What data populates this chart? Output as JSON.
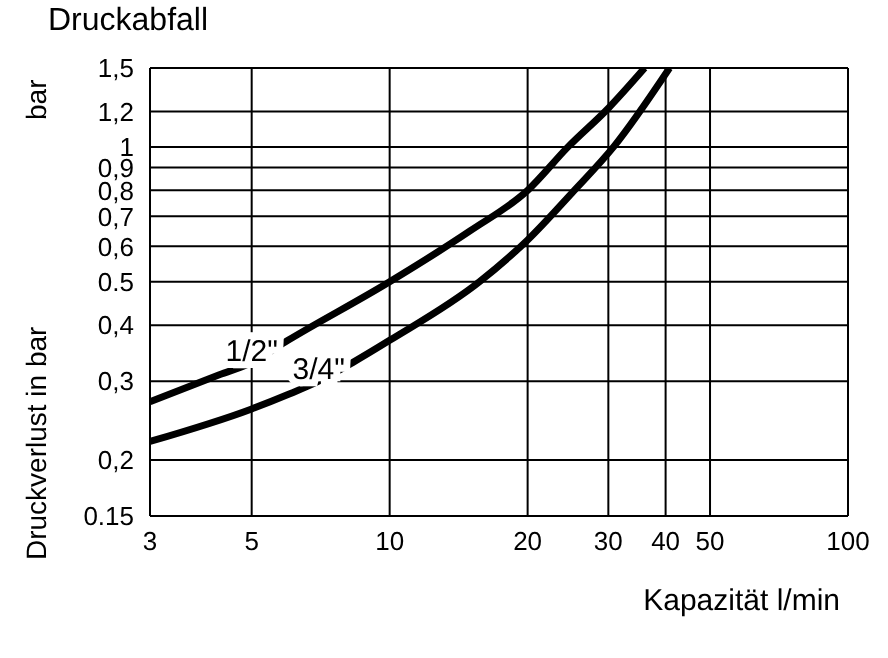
{
  "chart_data": {
    "type": "line",
    "title": "Druckabfall",
    "xlabel": "Kapazität l/min",
    "ylabel": "Druckverlust in bar",
    "annotations": [
      "bar"
    ],
    "log": "xy",
    "grid": true,
    "legend": false,
    "marker": "none",
    "line_style": "solid",
    "xlim": [
      3,
      100
    ],
    "xticks": [
      3,
      5,
      10,
      20,
      30,
      40,
      50,
      100
    ],
    "ylim": [
      0.15,
      1.5
    ],
    "yticks": [
      {
        "value": 0.15,
        "label": "0.15"
      },
      {
        "value": 0.2,
        "label": "0,2"
      },
      {
        "value": 0.3,
        "label": "0,3"
      },
      {
        "value": 0.4,
        "label": "0,4"
      },
      {
        "value": 0.5,
        "label": "0.5"
      },
      {
        "value": 0.6,
        "label": "0,6"
      },
      {
        "value": 0.7,
        "label": "0,7"
      },
      {
        "value": 0.8,
        "label": "0,8"
      },
      {
        "value": 0.9,
        "label": "0,9"
      },
      {
        "value": 1,
        "label": "1"
      },
      {
        "value": 1.2,
        "label": "1,2"
      },
      {
        "value": 1.5,
        "label": "1,5"
      }
    ],
    "series": [
      {
        "name": "1/2\"",
        "color": "#000000",
        "x": [
          3,
          4.25,
          5,
          6,
          10,
          15,
          20,
          24.5,
          30,
          36
        ],
        "values": [
          0.27,
          0.31,
          0.33,
          0.37,
          0.5,
          0.65,
          0.8,
          1,
          1.22,
          1.5
        ]
      },
      {
        "name": "3/4\"",
        "color": "#000000",
        "x": [
          3,
          5,
          6,
          7,
          8.3,
          10,
          15.7,
          20,
          25,
          30.8,
          40.8
        ],
        "values": [
          0.22,
          0.26,
          0.28,
          0.3,
          0.33,
          0.37,
          0.5,
          0.62,
          0.79,
          1,
          1.5
        ]
      }
    ]
  }
}
